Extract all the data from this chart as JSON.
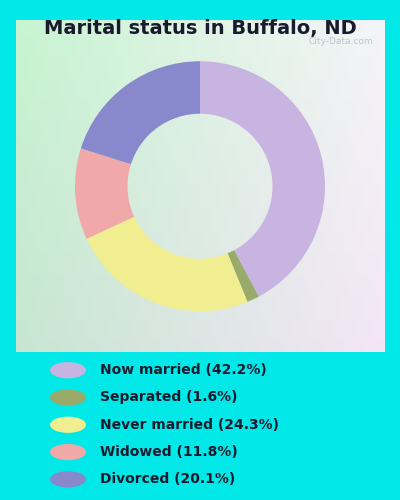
{
  "title": "Marital status in Buffalo, ND",
  "slices": [
    {
      "label": "Now married (42.2%)",
      "value": 42.2,
      "color": "#c8b4e0"
    },
    {
      "label": "Separated (1.6%)",
      "value": 1.6,
      "color": "#9aaa6a"
    },
    {
      "label": "Never married (24.3%)",
      "value": 24.3,
      "color": "#f0ee90"
    },
    {
      "label": "Widowed (11.8%)",
      "value": 11.8,
      "color": "#f0a8a8"
    },
    {
      "label": "Divorced (20.1%)",
      "value": 20.1,
      "color": "#8888cc"
    }
  ],
  "bg_cyan": "#00e8e8",
  "bg_chart_top_left": "#c8e8d0",
  "bg_chart_bottom_right": "#e8f4f8",
  "title_fontsize": 14,
  "watermark": "City-Data.com",
  "donut_width": 0.42,
  "legend_fontsize": 10
}
